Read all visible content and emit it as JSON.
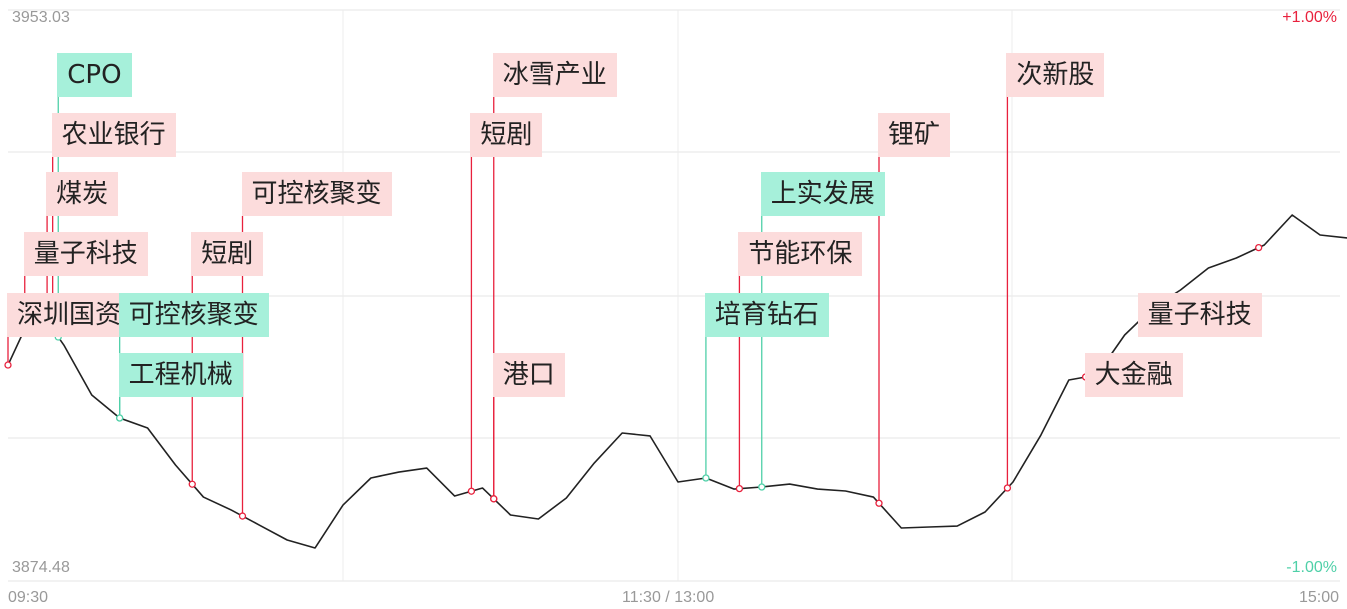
{
  "chart_data": {
    "type": "line",
    "title": "",
    "xlabel": "",
    "ylabel": "",
    "y_axis": {
      "max_label": "3953.03",
      "min_label": "3874.48",
      "ylim": [
        3874.48,
        3953.03
      ]
    },
    "pct_axis": {
      "max_label": "+1.00%",
      "min_label": "-1.00%"
    },
    "x_ticks": [
      "09:30",
      "11:30 / 13:00",
      "15:00"
    ],
    "grid": true,
    "colors": {
      "line": "#222222",
      "up": "#e8213d",
      "up_label_bg": "#fcdcdc",
      "down": "#4fd0a8",
      "down_label_bg": "#a6f0da"
    },
    "x": [
      "09:30",
      "09:35",
      "09:40",
      "09:45",
      "09:50",
      "09:55",
      "10:00",
      "10:05",
      "10:10",
      "10:15",
      "10:20",
      "10:25",
      "10:30",
      "10:35",
      "10:40",
      "10:45",
      "10:50",
      "10:55",
      "11:00",
      "11:05",
      "11:10",
      "11:15",
      "11:20",
      "11:25",
      "11:30",
      "13:05",
      "13:10",
      "13:15",
      "13:20",
      "13:25",
      "13:30",
      "13:35",
      "13:40",
      "13:45",
      "13:50",
      "13:55",
      "14:00",
      "14:05",
      "14:10",
      "14:15",
      "14:20",
      "14:25",
      "14:30",
      "14:35",
      "14:40",
      "14:45",
      "14:50",
      "14:55",
      "15:00"
    ],
    "values": [
      3904.19,
      3912.45,
      3906.94,
      3900.07,
      3896.9,
      3895.53,
      3890.44,
      3886.03,
      3884.24,
      3882.18,
      3880.12,
      3879.02,
      3884.93,
      3888.65,
      3889.47,
      3890.02,
      3886.17,
      3887.27,
      3883.56,
      3883.01,
      3885.9,
      3890.71,
      3894.84,
      3894.43,
      3888.1,
      3888.65,
      3887.13,
      3887.41,
      3887.82,
      3887.13,
      3886.86,
      3886.03,
      3881.77,
      3881.91,
      3882.04,
      3883.97,
      3888.1,
      3894.56,
      3902.13,
      3902.82,
      3908.32,
      3912.03,
      3914.51,
      3917.54,
      3918.91,
      3920.7,
      3924.83,
      3922.08,
      3921.66
    ],
    "annotations": [
      {
        "time": "09:30",
        "label": "深圳国资",
        "kind": "up"
      },
      {
        "time": "09:33",
        "label": "量子科技",
        "kind": "up"
      },
      {
        "time": "09:37",
        "label": "煤炭",
        "kind": "up"
      },
      {
        "time": "09:38",
        "label": "农业银行",
        "kind": "up"
      },
      {
        "time": "09:39",
        "label": "CPO",
        "kind": "down"
      },
      {
        "time": "09:50",
        "label": "可控核聚变",
        "kind": "down"
      },
      {
        "time": "09:50",
        "label": "工程机械",
        "kind": "down"
      },
      {
        "time": "10:03",
        "label": "短剧",
        "kind": "up"
      },
      {
        "time": "10:12",
        "label": "可控核聚变",
        "kind": "up"
      },
      {
        "time": "10:53",
        "label": "短剧",
        "kind": "up"
      },
      {
        "time": "10:57",
        "label": "冰雪产业",
        "kind": "up"
      },
      {
        "time": "10:57",
        "label": "港口",
        "kind": "up"
      },
      {
        "time": "13:05",
        "label": "培育钻石",
        "kind": "down"
      },
      {
        "time": "13:11",
        "label": "节能环保",
        "kind": "up"
      },
      {
        "time": "13:15",
        "label": "上实发展",
        "kind": "down"
      },
      {
        "time": "13:36",
        "label": "锂矿",
        "kind": "up"
      },
      {
        "time": "13:59",
        "label": "次新股",
        "kind": "up"
      },
      {
        "time": "14:13",
        "label": "大金融",
        "kind": "up"
      },
      {
        "time": "14:44",
        "label": "量子科技",
        "kind": "up"
      }
    ]
  }
}
